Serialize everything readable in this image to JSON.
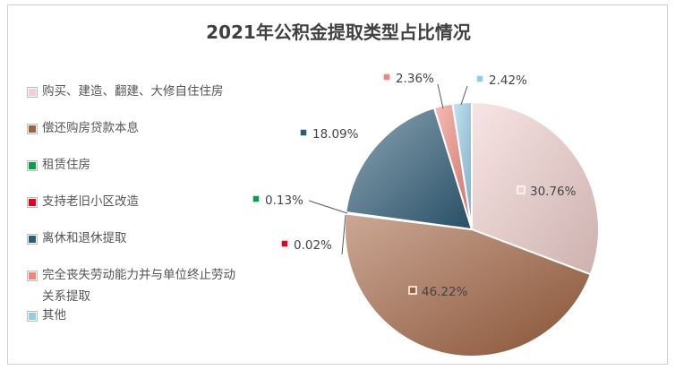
{
  "chart_data": {
    "type": "pie",
    "title": "2021年公积金提取类型占比情况",
    "legend_position": "left",
    "categories": [
      "购买、建造、翻建、大修自住住房",
      "偿还购房贷款本息",
      "租赁住房",
      "支持老旧小区改造",
      "离休和退休提取",
      "完全丧失劳动能力并与单位终止劳动关系提取",
      "其他"
    ],
    "values": [
      30.76,
      46.22,
      0.13,
      0.02,
      18.09,
      2.36,
      2.42
    ],
    "value_labels": [
      "30.76%",
      "46.22%",
      "0.13%",
      "0.02%",
      "18.09%",
      "2.36%",
      "2.42%"
    ],
    "colors": [
      "#f1d0cd",
      "#a0613e",
      "#00a14b",
      "#e8001c",
      "#2f5d78",
      "#f0857a",
      "#93cce8"
    ],
    "legend_lines": [
      [
        "购买、建造、翻建、大修自住住房"
      ],
      [
        "偿还购房贷款本息"
      ],
      [
        "租赁住房"
      ],
      [
        "支持老旧小区改造"
      ],
      [
        "离休和退休提取"
      ],
      [
        "完全丧失劳动能力并与单位终止劳动",
        "关系提取"
      ],
      [
        "其他"
      ]
    ]
  }
}
